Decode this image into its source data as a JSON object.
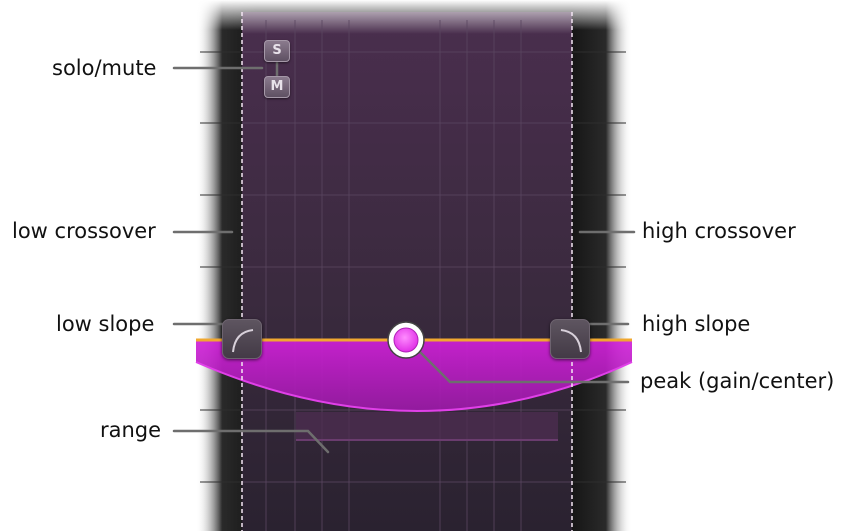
{
  "callouts": {
    "solo_mute": "solo/mute",
    "low_crossover": "low crossover",
    "low_slope": "low slope",
    "range": "range",
    "high_crossover": "high crossover",
    "high_slope": "high slope",
    "peak": "peak (gain/center)"
  },
  "buttons": {
    "solo": "S",
    "mute": "M"
  },
  "colors": {
    "accent_orange": "#f0a830",
    "curve_magenta": "#c020c8",
    "peak_dot": "#ff55ff",
    "panel_purple": "#3e2a40"
  }
}
